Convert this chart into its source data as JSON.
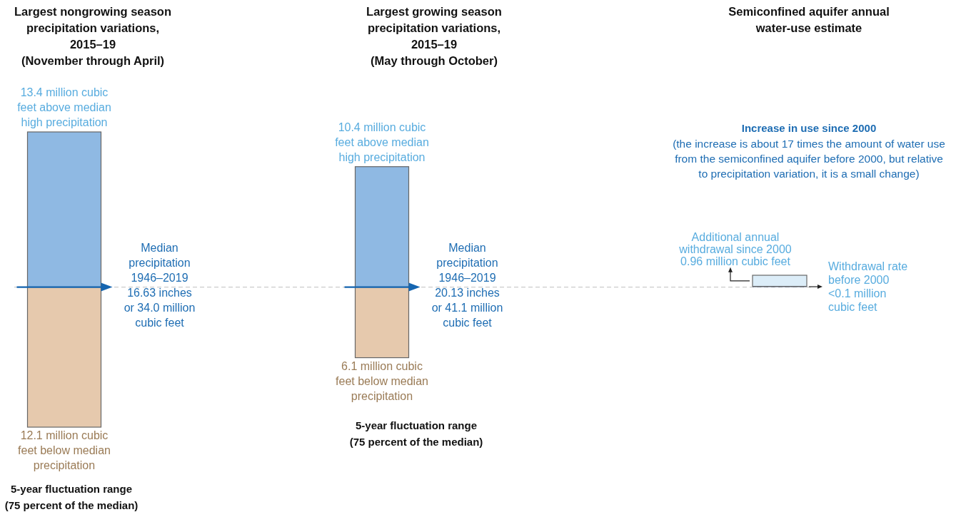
{
  "chart_data": {
    "type": "bar",
    "stacked": true,
    "categories": [
      "Largest nongrowing season\nprecipitation variations,\n2015–19\n(November through April)",
      "Largest growing season\nprecipitation variations,\n2015–19\n(May through October)",
      "Semiconfined aquifer annual\nwater-use estimate"
    ],
    "series": [
      {
        "color": "#5b6f8f",
        "values": [
          null,
          null,
          0.06
        ],
        "value_labels": [
          null,
          null,
          "Withdrawal rate\nbefore 2000\n<0.1 million\ncubic feet"
        ]
      },
      {
        "colors": [
          "#8fb9e3",
          "#8fb9e3",
          "#dcedf8"
        ],
        "values": [
          13.4,
          10.4,
          0.96
        ],
        "value_labels": [
          "13.4 million cubic\nfeet above median\nhigh precipitation",
          "10.4 million cubic\nfeet above median\nhigh precipitation",
          "Additional annual\nwithdrawal since 2000\n0.96 million cubic feet"
        ]
      },
      {
        "color": "#e6c9ad",
        "values": [
          -12.1,
          -6.1,
          null
        ]
      }
    ],
    "ref_lines": [
      {
        "axis": "y",
        "value": 0,
        "color": "#cccccc",
        "line_style": "dashed"
      }
    ],
    "annotations": [
      "Median\nprecipitation\n1946–2019\n16.63 inches\nor 34.0 million\ncubic feet",
      "Median\nprecipitation\n1946–2019\n20.13 inches\nor 41.1 million\ncubic feet",
      "5-year fluctuation range\n(75 percent of the median)",
      "5-year fluctuation range\n(75 percent of the median)",
      "Increase in use since 2000",
      "(the increase is about 17 times the  amount of water use\nfrom the semiconfined aquifer before 2000, but relative\nto precipitation variation, it is a small change)",
      {
        "text": "12.1 million cubic\nfeet below median\nprecipitation",
        "x": "Largest nongrowing season\nprecipitation variations,\n2015–19\n(November through April)",
        "y": -12.1
      },
      "6.1 million cubic\nfeet below median\nprecipitation"
    ]
  }
}
